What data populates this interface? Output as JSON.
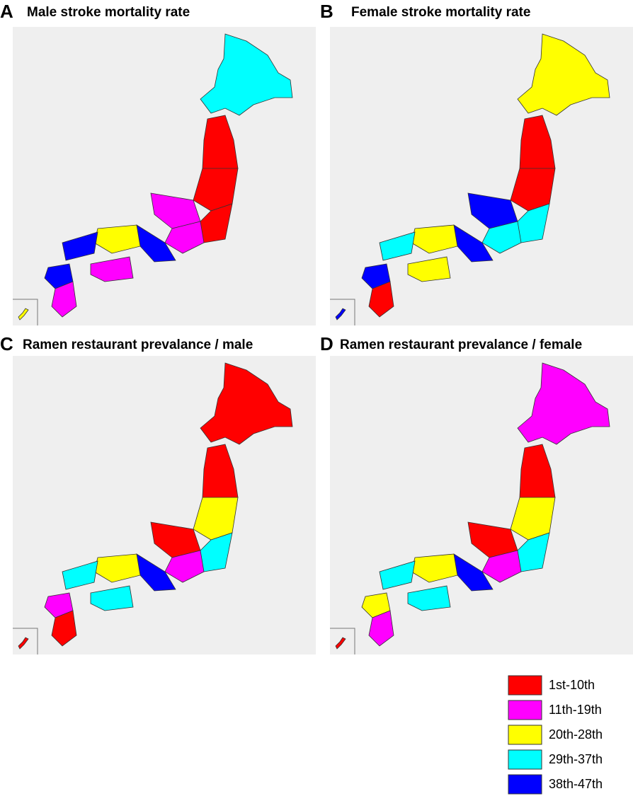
{
  "panels": [
    {
      "letter": "A",
      "title": "Male stroke mortality rate"
    },
    {
      "letter": "B",
      "title": "Female stroke mortality rate"
    },
    {
      "letter": "C",
      "title": "Ramen restaurant prevalance / male"
    },
    {
      "letter": "D",
      "title": "Ramen restaurant prevalance / female"
    }
  ],
  "legend": [
    {
      "label": "1st-10th",
      "color": "#ff0000"
    },
    {
      "label": "11th-19th",
      "color": "#ff00ff"
    },
    {
      "label": "20th-28th",
      "color": "#ffff00"
    },
    {
      "label": "29th-37th",
      "color": "#00ffff"
    },
    {
      "label": "38th-47th",
      "color": "#0000ff"
    }
  ]
}
